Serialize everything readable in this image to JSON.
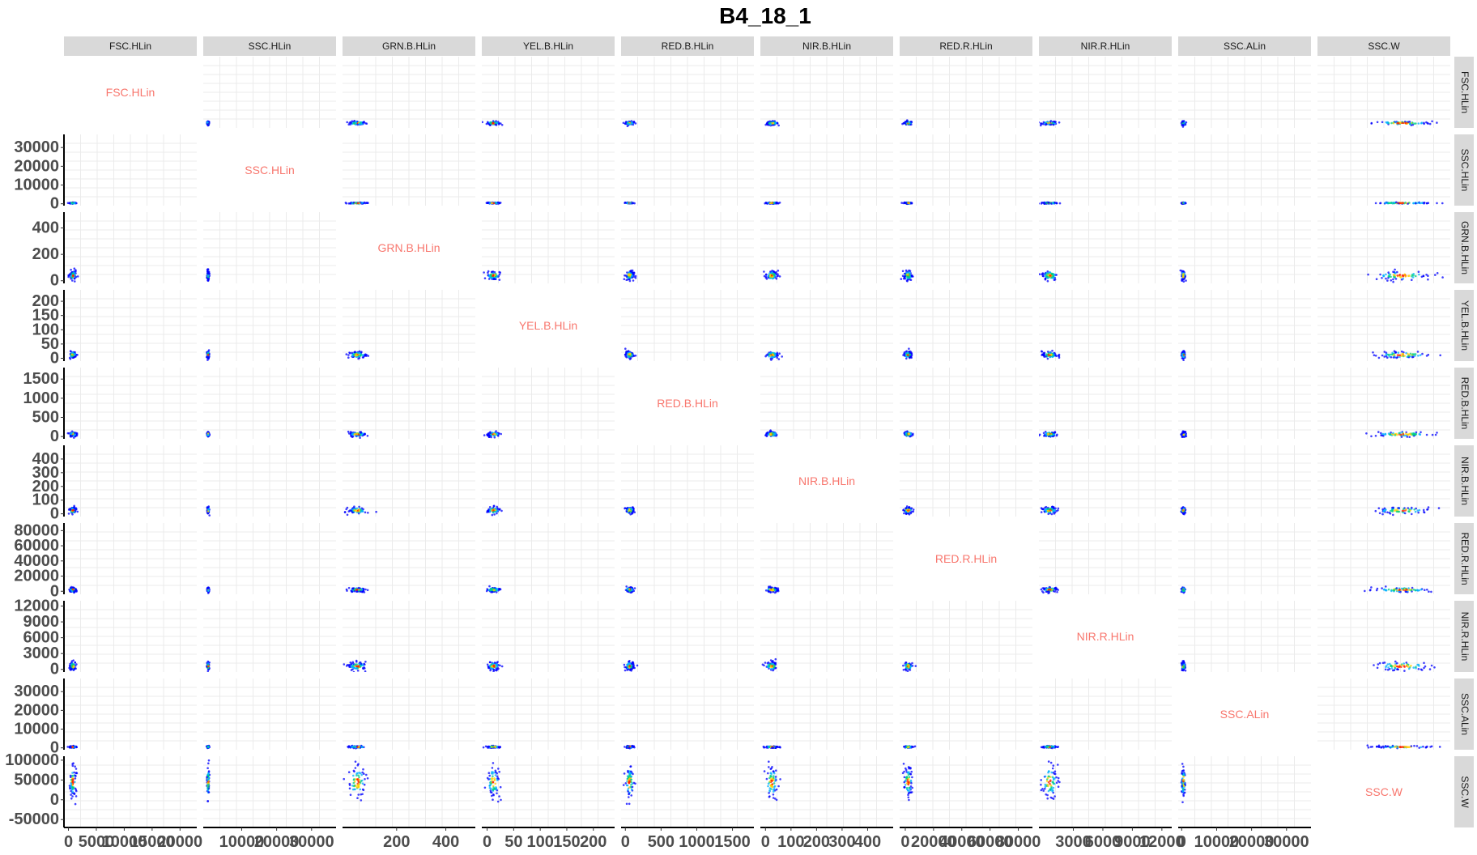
{
  "chart_data": {
    "type": "scatter",
    "title": "B4_18_1",
    "variables": [
      "FSC.HLin",
      "SSC.HLin",
      "GRN.B.HLin",
      "YEL.B.HLin",
      "RED.B.HLin",
      "NIR.B.HLin",
      "RED.R.HLin",
      "NIR.R.HLin",
      "SSC.ALin",
      "SSC.W"
    ],
    "x_axis": [
      {
        "ticks": [
          0,
          5000,
          10000,
          15000,
          20000
        ],
        "labels": [
          "0",
          "5000",
          "10000",
          "15000",
          "20000"
        ],
        "range": [
          -800,
          23000
        ]
      },
      {
        "ticks": [
          10000,
          20000,
          30000
        ],
        "labels": [
          "10000",
          "20000",
          "30000"
        ],
        "range": [
          -1000,
          37000
        ]
      },
      {
        "ticks": [
          200,
          400
        ],
        "labels": [
          "200",
          "400"
        ],
        "range": [
          -20,
          520
        ]
      },
      {
        "ticks": [
          0,
          50,
          100,
          150,
          200
        ],
        "labels": [
          "0",
          "50",
          "100",
          "150",
          "200"
        ],
        "range": [
          -10,
          240
        ]
      },
      {
        "ticks": [
          0,
          500,
          1000,
          1500
        ],
        "labels": [
          "0",
          "500",
          "1000",
          "1500"
        ],
        "range": [
          -60,
          1800
        ]
      },
      {
        "ticks": [
          0,
          100,
          200,
          300,
          400
        ],
        "labels": [
          "0",
          "100",
          "200",
          "300",
          "400"
        ],
        "range": [
          -20,
          500
        ]
      },
      {
        "ticks": [
          0,
          20000,
          40000,
          60000,
          80000
        ],
        "labels": [
          "0",
          "20000",
          "40000",
          "60000",
          "80000"
        ],
        "range": [
          -4000,
          90000
        ]
      },
      {
        "ticks": [
          3000,
          6000,
          9000,
          12000
        ],
        "labels": [
          "3000",
          "6000",
          "9000",
          "12000"
        ],
        "range": [
          -500,
          13000
        ]
      },
      {
        "ticks": [
          0,
          10000,
          20000,
          30000
        ],
        "labels": [
          "0",
          "10000",
          "20000",
          "30000"
        ],
        "range": [
          -1000,
          37000
        ]
      },
      {
        "ticks": [],
        "labels": [],
        "range": [
          -70000,
          110000
        ]
      }
    ],
    "y_axis": [
      {
        "ticks": [],
        "labels": [],
        "range": [
          -800,
          23000
        ]
      },
      {
        "ticks": [
          0,
          10000,
          20000,
          30000
        ],
        "labels": [
          "0",
          "10000",
          "20000",
          "30000"
        ],
        "range": [
          -1000,
          37000
        ]
      },
      {
        "ticks": [
          0,
          200,
          400
        ],
        "labels": [
          "0",
          "200",
          "400"
        ],
        "range": [
          -20,
          520
        ]
      },
      {
        "ticks": [
          0,
          50,
          100,
          150,
          200
        ],
        "labels": [
          "0",
          "50",
          "100",
          "150",
          "200"
        ],
        "range": [
          -10,
          240
        ]
      },
      {
        "ticks": [
          0,
          500,
          1000,
          1500
        ],
        "labels": [
          "0",
          "500",
          "1000",
          "1500"
        ],
        "range": [
          -60,
          1800
        ]
      },
      {
        "ticks": [
          0,
          100,
          200,
          300,
          400
        ],
        "labels": [
          "0",
          "100",
          "200",
          "300",
          "400"
        ],
        "range": [
          -20,
          500
        ]
      },
      {
        "ticks": [
          0,
          20000,
          40000,
          60000,
          80000
        ],
        "labels": [
          "0",
          "20000",
          "40000",
          "60000",
          "80000"
        ],
        "range": [
          -4000,
          90000
        ]
      },
      {
        "ticks": [
          0,
          3000,
          6000,
          9000,
          12000
        ],
        "labels": [
          "0",
          "3000",
          "6000",
          "9000",
          "12000"
        ],
        "range": [
          -500,
          13000
        ]
      },
      {
        "ticks": [
          0,
          10000,
          20000,
          30000
        ],
        "labels": [
          "0",
          "10000",
          "20000",
          "30000"
        ],
        "range": [
          -1000,
          37000
        ]
      },
      {
        "ticks": [
          -50000,
          0,
          50000,
          100000
        ],
        "labels": [
          "-50000",
          "0",
          "50000",
          "100000"
        ],
        "range": [
          -70000,
          110000
        ]
      }
    ],
    "cluster_centers": [
      800,
      400,
      40,
      12,
      60,
      25,
      2000,
      600,
      500,
      45000
    ],
    "cluster_spread": [
      300,
      150,
      18,
      6,
      30,
      12,
      1500,
      400,
      250,
      20000
    ],
    "legend": "none",
    "grid": true,
    "colors": {
      "strip_fill": "#d9d9d9",
      "grid": "#ebebeb",
      "diagonal_label": "#f8766d",
      "density": [
        "#0000ff",
        "#00b0ff",
        "#00d080",
        "#ffd000",
        "#ff2000"
      ]
    }
  }
}
